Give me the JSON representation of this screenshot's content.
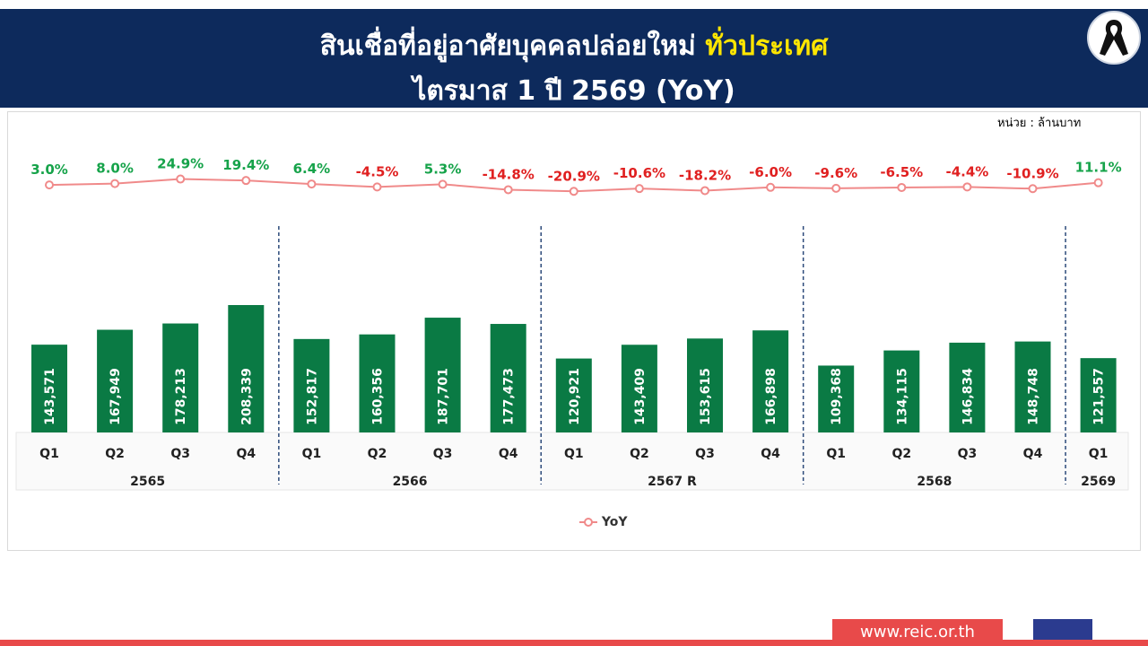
{
  "header": {
    "title_part1": "สินเชื่อที่อยู่อาศัยบุคคลปล่อยใหม่",
    "title_highlight": "ทั่วประเทศ",
    "title_line2": "ไตรมาส 1 ปี 2569 (YoY)"
  },
  "unit_label": "หน่วย : ล้านบาท",
  "legend_label": "YoY",
  "footer": {
    "url": "www.reic.or.th"
  },
  "colors": {
    "header_bg": "#0d2a5c",
    "highlight": "#ffe600",
    "bar": "#0a7a44",
    "line": "#f08a8a",
    "pos": "#16a34a",
    "neg": "#e02020",
    "footer_red": "#e84a4a",
    "footer_blue": "#2b3b8f"
  },
  "icons": {
    "ribbon": "mourning-ribbon-icon"
  },
  "chart_data": {
    "type": "bar",
    "categories": [
      "Q1",
      "Q2",
      "Q3",
      "Q4",
      "Q1",
      "Q2",
      "Q3",
      "Q4",
      "Q1",
      "Q2",
      "Q3",
      "Q4",
      "Q1",
      "Q2",
      "Q3",
      "Q4",
      "Q1"
    ],
    "groups": [
      {
        "label": "2565",
        "count": 4
      },
      {
        "label": "2566",
        "count": 4
      },
      {
        "label": "2567 R",
        "count": 4
      },
      {
        "label": "2568",
        "count": 4
      },
      {
        "label": "2569",
        "count": 1
      }
    ],
    "series": [
      {
        "values": [
          143571,
          167949,
          178213,
          208339,
          152817,
          160356,
          187701,
          177473,
          120921,
          143409,
          153615,
          166898,
          109368,
          134115,
          146834,
          148748,
          121557
        ],
        "labels": [
          "143,571",
          "167,949",
          "178,213",
          "208,339",
          "152,817",
          "160,356",
          "187,701",
          "177,473",
          "120,921",
          "143,409",
          "153,615",
          "166,898",
          "109,368",
          "134,115",
          "146,834",
          "148,748",
          "121,557"
        ]
      },
      {
        "name": "YoY",
        "type": "line",
        "values": [
          3.0,
          8.0,
          24.9,
          19.4,
          6.4,
          -4.5,
          5.3,
          -14.8,
          -20.9,
          -10.6,
          -18.2,
          -6.0,
          -9.6,
          -6.5,
          -4.4,
          -10.9,
          11.1
        ],
        "labels": [
          "3.0%",
          "8.0%",
          "24.9%",
          "19.4%",
          "6.4%",
          "-4.5%",
          "5.3%",
          "-14.8%",
          "-20.9%",
          "-10.6%",
          "-18.2%",
          "-6.0%",
          "-9.6%",
          "-6.5%",
          "-4.4%",
          "-10.9%",
          "11.1%"
        ]
      }
    ]
  }
}
